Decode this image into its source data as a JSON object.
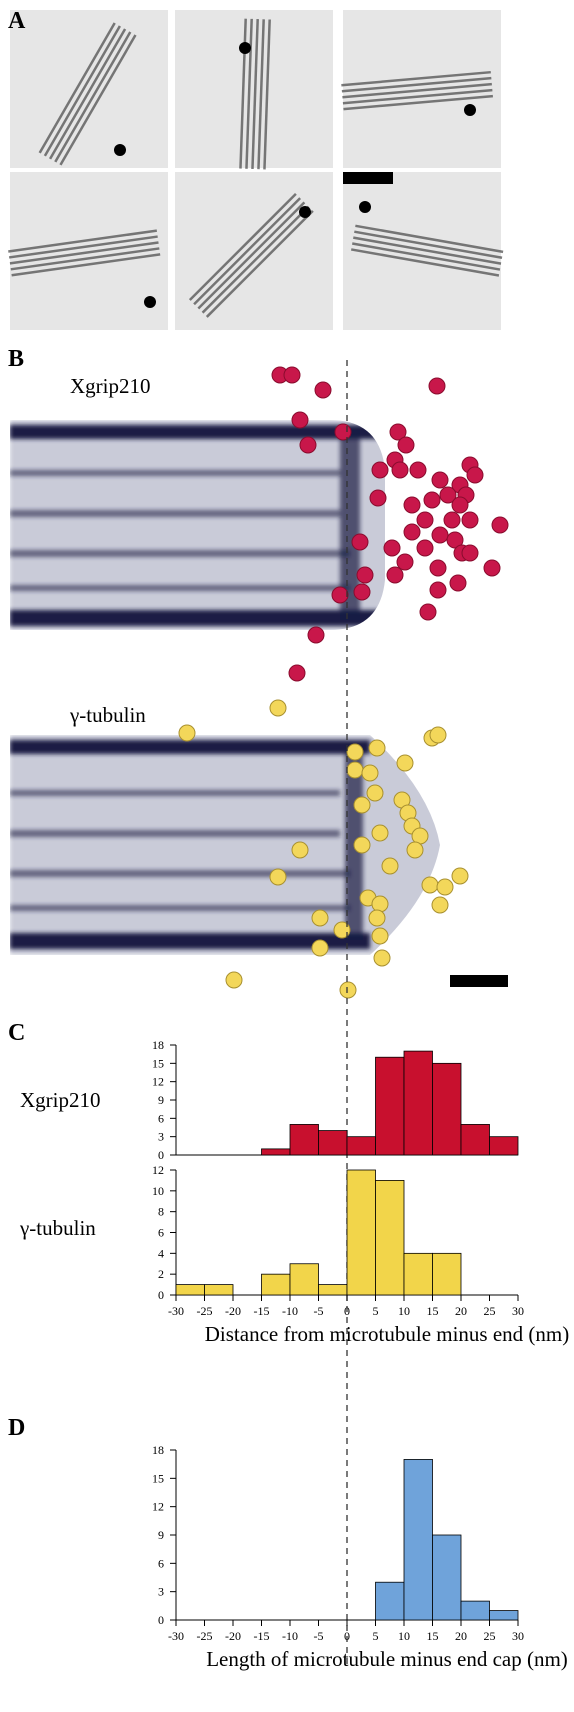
{
  "panels": {
    "a": "A",
    "b": "B",
    "c": "C",
    "d": "D",
    "b_top_label": "Xgrip210",
    "b_bottom_label": "γ-tubulin"
  },
  "chart_data": [
    {
      "type": "histogram",
      "ylabel": "Xgrip210",
      "color": "#c8102e",
      "bins": [
        -30,
        -25,
        -20,
        -15,
        -10,
        -5,
        0,
        5,
        10,
        15,
        20,
        25,
        30
      ],
      "values": [
        0,
        0,
        0,
        1,
        5,
        4,
        3,
        16,
        17,
        15,
        5,
        3
      ],
      "xlim": [
        -30,
        30
      ],
      "ylim": [
        0,
        18
      ],
      "yticks": [
        0,
        3,
        6,
        9,
        12,
        15,
        18
      ]
    },
    {
      "type": "histogram",
      "ylabel": "γ-tubulin",
      "color": "#f2d54a",
      "xlabel": "Distance from microtubule minus end (nm)",
      "bins": [
        -30,
        -25,
        -20,
        -15,
        -10,
        -5,
        0,
        5,
        10,
        15,
        20,
        25,
        30
      ],
      "values": [
        1,
        1,
        0,
        2,
        3,
        1,
        12,
        11,
        4,
        4,
        0,
        0
      ],
      "xlim": [
        -30,
        30
      ],
      "ylim": [
        0,
        12
      ],
      "yticks": [
        0,
        2,
        4,
        6,
        8,
        10,
        12
      ],
      "xticks": [
        -30,
        -25,
        -20,
        -15,
        -10,
        -5,
        0,
        5,
        10,
        15,
        20,
        25,
        30
      ]
    },
    {
      "type": "histogram",
      "color": "#6fa3da",
      "xlabel": "Length of microtubule minus end cap (nm)",
      "bins": [
        -30,
        -25,
        -20,
        -15,
        -10,
        -5,
        0,
        5,
        10,
        15,
        20,
        25,
        30
      ],
      "values": [
        0,
        0,
        0,
        0,
        0,
        0,
        0,
        4,
        17,
        9,
        2,
        1
      ],
      "xlim": [
        -30,
        30
      ],
      "ylim": [
        0,
        18
      ],
      "yticks": [
        0,
        3,
        6,
        9,
        12,
        15,
        18
      ],
      "xticks": [
        -30,
        -25,
        -20,
        -15,
        -10,
        -5,
        0,
        5,
        10,
        15,
        20,
        25,
        30
      ]
    }
  ]
}
